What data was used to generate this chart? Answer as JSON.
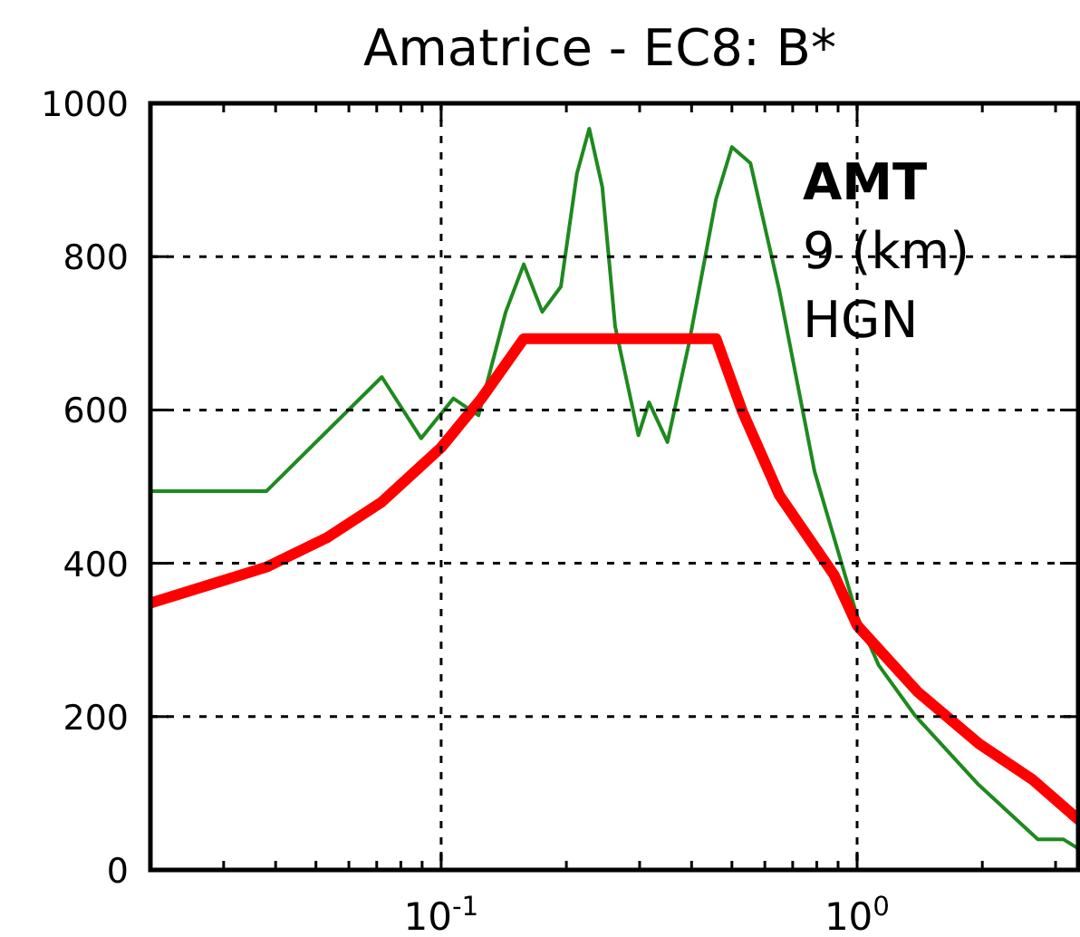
{
  "chart_data": {
    "type": "line",
    "title": "Amatrice - EC8: B*",
    "log": "x",
    "grid": true,
    "marker": "none",
    "line_style": "solid",
    "xlim": [
      0.02,
      3.4
    ],
    "ylim": [
      0,
      1000
    ],
    "yticks": [
      0,
      200,
      400,
      600,
      800,
      1000
    ],
    "xticks": [
      {
        "value": 0.03,
        "label": null
      },
      {
        "value": 0.04,
        "label": null
      },
      {
        "value": 0.05,
        "label": null
      },
      {
        "value": 0.06,
        "label": null
      },
      {
        "value": 0.07,
        "label": null
      },
      {
        "value": 0.08,
        "label": null
      },
      {
        "value": 0.09,
        "label": null
      },
      {
        "value": 0.1,
        "label": "10$^{-1}$"
      },
      {
        "value": 0.2,
        "label": null
      },
      {
        "value": 0.3,
        "label": null
      },
      {
        "value": 0.4,
        "label": null
      },
      {
        "value": 0.5,
        "label": null
      },
      {
        "value": 0.6,
        "label": null
      },
      {
        "value": 0.7,
        "label": null
      },
      {
        "value": 0.8,
        "label": null
      },
      {
        "value": 0.9,
        "label": null
      },
      {
        "value": 1,
        "label": "10$^{0}$"
      },
      {
        "value": 2,
        "label": null
      },
      {
        "value": 3,
        "label": null
      }
    ],
    "annotations": [
      "AMT",
      "9 (km)",
      "HGN"
    ],
    "series": [
      {
        "color": "#1e8a1e",
        "x": [
          0.02,
          0.038,
          0.072,
          0.0895,
          0.107,
          0.123,
          0.143,
          0.158,
          0.175,
          0.194,
          0.212,
          0.227,
          0.244,
          0.262,
          0.298,
          0.316,
          0.35,
          0.394,
          0.458,
          0.5,
          0.554,
          0.65,
          0.79,
          1.0,
          1.127,
          1.38,
          1.96,
          2.72,
          3.13,
          3.4
        ],
        "values": [
          494,
          494,
          643,
          563,
          615,
          593,
          728,
          790,
          728,
          761,
          908,
          967,
          891,
          709,
          567,
          610,
          558,
          686,
          875,
          943,
          922,
          756,
          520,
          331,
          267,
          201,
          111,
          40,
          40,
          28
        ]
      },
      {
        "color": "#ff0000",
        "x": [
          0.02,
          0.038,
          0.053,
          0.072,
          0.1,
          0.125,
          0.158,
          0.458,
          0.53,
          0.65,
          0.88,
          1.0,
          1.4,
          1.96,
          2.64,
          3.4
        ],
        "values": [
          348,
          395,
          433,
          480,
          551,
          615,
          693,
          693,
          598,
          489,
          385,
          319,
          232,
          165,
          118,
          66
        ]
      }
    ]
  }
}
